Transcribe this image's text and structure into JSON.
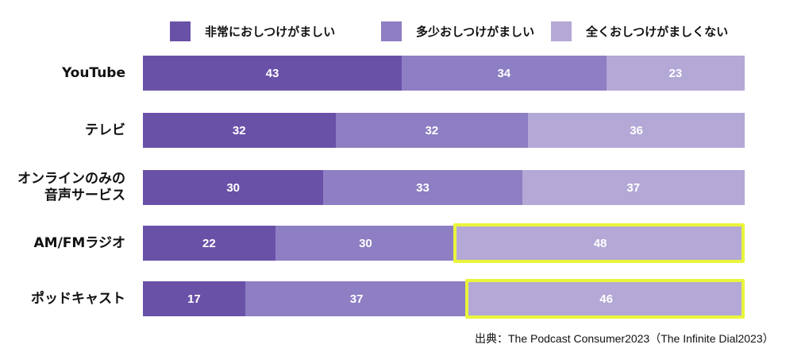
{
  "chart_data": {
    "type": "bar",
    "orientation": "horizontal",
    "stacked": true,
    "categories": [
      "YouTube",
      "テレビ",
      "オンラインのみの\n音声サービス",
      "AM/FMラジオ",
      "ポッドキャスト"
    ],
    "series": [
      {
        "name": "非常におしつけがましい",
        "values": [
          43,
          32,
          30,
          22,
          17
        ],
        "color": "#6a51a8"
      },
      {
        "name": "多少おしつけがましい",
        "values": [
          34,
          32,
          33,
          30,
          37
        ],
        "color": "#8e7ec3"
      },
      {
        "name": "全くおしつけがましくない",
        "values": [
          23,
          36,
          37,
          48,
          46
        ],
        "color": "#b4a8d6"
      }
    ],
    "xlim": [
      0,
      100
    ],
    "legend_position": "top",
    "grid": false,
    "highlights": [
      {
        "category": "AM/FMラジオ",
        "series": "全くおしつけがましくない"
      },
      {
        "category": "ポッドキャスト",
        "series": "全くおしつけがましくない"
      }
    ],
    "highlight_color": "#e9f53c"
  },
  "source": "出典：The Podcast Consumer2023（The Infinite Dial2023）"
}
